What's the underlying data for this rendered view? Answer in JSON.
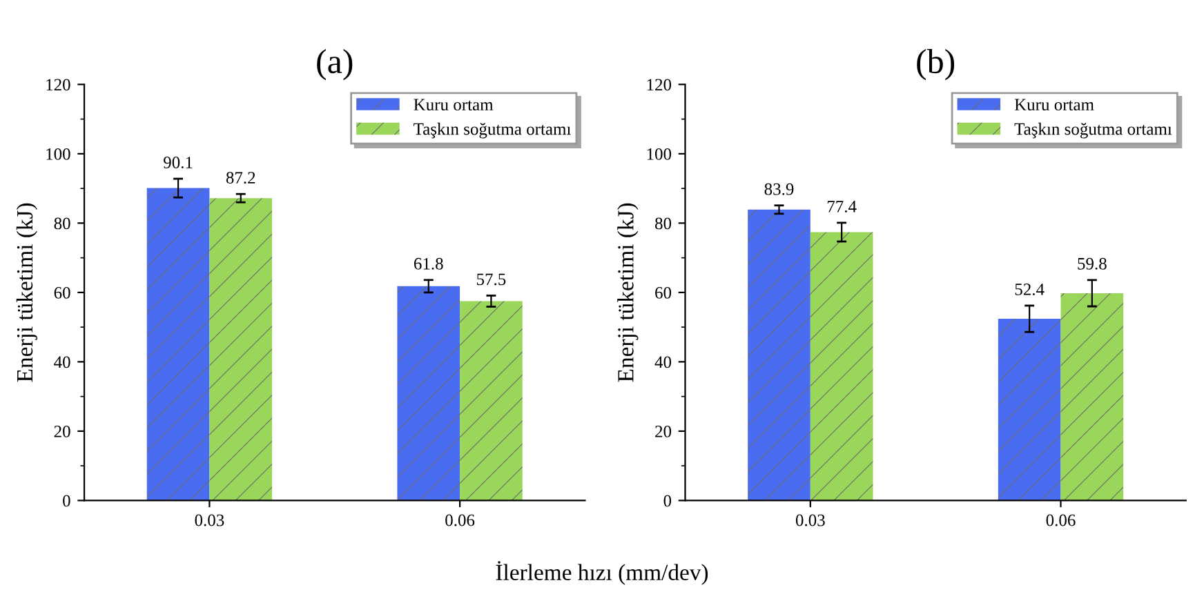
{
  "chart_data": [
    {
      "type": "bar",
      "title": "(a)",
      "xlabel": "İlerleme hızı (mm/dev)",
      "ylabel": "Enerji tüketimi (kJ)",
      "categories": [
        "0.03",
        "0.06"
      ],
      "series": [
        {
          "name": "Kuru ortam",
          "color": "#4a6cf0",
          "values": [
            90.1,
            61.8
          ],
          "errors": [
            2.7,
            1.8
          ]
        },
        {
          "name": "Taşkın soğutma ortamı",
          "color": "#9ad65a",
          "values": [
            87.2,
            57.5
          ],
          "errors": [
            1.2,
            1.6
          ]
        }
      ],
      "ylim": [
        0,
        120
      ],
      "yticks": [
        0,
        20,
        40,
        60,
        80,
        100,
        120
      ],
      "data_labels": true,
      "legend": "top right",
      "grid": false
    },
    {
      "type": "bar",
      "title": "(b)",
      "ylabel": "Enerji tüketimi (kJ)",
      "categories": [
        "0.03",
        "0.06"
      ],
      "series": [
        {
          "name": "Kuru ortam",
          "color": "#4a6cf0",
          "values": [
            83.9,
            52.4
          ],
          "errors": [
            1.2,
            3.8
          ]
        },
        {
          "name": "Taşkın soğutma ortamı",
          "color": "#9ad65a",
          "values": [
            77.4,
            59.8
          ],
          "errors": [
            2.7,
            3.8
          ]
        }
      ],
      "ylim": [
        0,
        120
      ],
      "yticks": [
        0,
        20,
        40,
        60,
        80,
        100,
        120
      ],
      "data_labels": true,
      "legend": "top right",
      "grid": false
    }
  ]
}
